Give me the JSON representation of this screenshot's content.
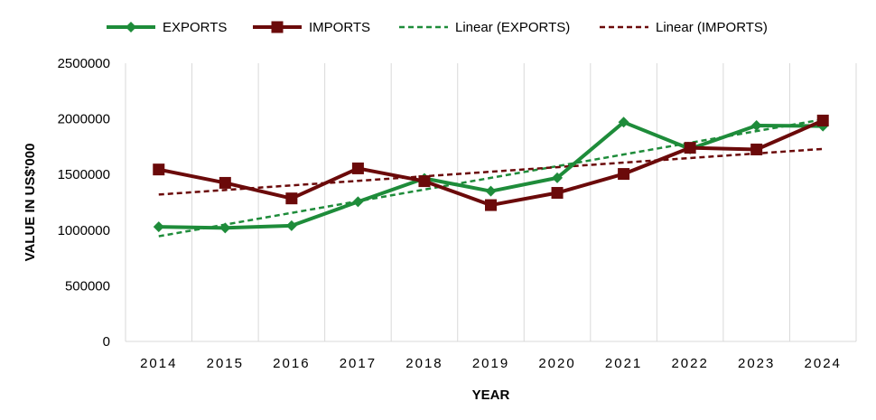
{
  "chart_data": {
    "type": "line",
    "title": "",
    "xlabel": "YEAR",
    "ylabel": "VALUE IN US$'000",
    "categories": [
      "2014",
      "2015",
      "2016",
      "2017",
      "2018",
      "2019",
      "2020",
      "2021",
      "2022",
      "2023",
      "2024"
    ],
    "ylim": [
      0,
      2500000
    ],
    "yticks": [
      0,
      500000,
      1000000,
      1500000,
      2000000,
      2500000
    ],
    "ytick_labels": [
      "0",
      "500000",
      "1000000",
      "1500000",
      "2000000",
      "2500000"
    ],
    "grid": "vertical",
    "legend_position": "top",
    "series": [
      {
        "name": "EXPORTS",
        "color": "#1e8c3a",
        "marker": "diamond",
        "style": "solid",
        "values": [
          1030000,
          1020000,
          1040000,
          1255000,
          1465000,
          1350000,
          1470000,
          1970000,
          1730000,
          1940000,
          1935000
        ]
      },
      {
        "name": "IMPORTS",
        "color": "#6b0a0a",
        "marker": "square",
        "style": "solid",
        "values": [
          1545000,
          1425000,
          1285000,
          1555000,
          1440000,
          1225000,
          1335000,
          1505000,
          1740000,
          1725000,
          1985000
        ]
      },
      {
        "name": "Linear (EXPORTS)",
        "color": "#1e8c3a",
        "style": "dashed",
        "values": [
          945000,
          1050000,
          1155000,
          1260000,
          1365000,
          1470000,
          1575000,
          1680000,
          1785000,
          1890000,
          1995000
        ]
      },
      {
        "name": "Linear (IMPORTS)",
        "color": "#6b0a0a",
        "style": "dashed",
        "values": [
          1320000,
          1361000,
          1402000,
          1443000,
          1484000,
          1525000,
          1566000,
          1607000,
          1648000,
          1689000,
          1730000
        ]
      }
    ]
  }
}
